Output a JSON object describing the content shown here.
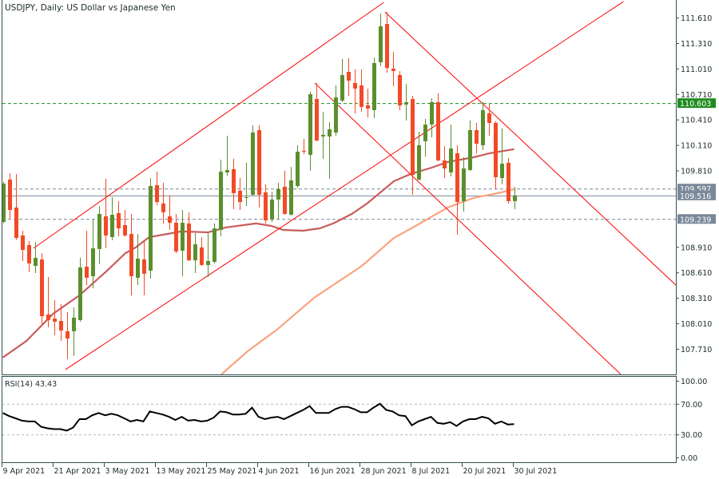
{
  "header": {
    "title": "USDJPY, Daily:  US Dollar vs Japanese Yen"
  },
  "colors": {
    "bull": "#5b8f2e",
    "bear": "#f24a26",
    "ma_fast": "#c95c5c",
    "ma_slow": "#f9a47e",
    "trendline": "#ff0000",
    "axis": "#2f4f4f",
    "marker_green": "#1f8c1f",
    "marker_gray": "#7a8899",
    "rsi": "#000000",
    "level": "#b8b8b8"
  },
  "chart_data": [
    {
      "type": "candlestick",
      "title": "USDJPY, Daily:  US Dollar vs Japanese Yen",
      "ylim": [
        107.409,
        111.817
      ],
      "xlim_bars": [
        -0.2,
        105.3
      ],
      "y_ticks": [
        "111.610",
        "111.310",
        "111.010",
        "110.710",
        "110.410",
        "110.110",
        "109.810",
        "108.910",
        "108.610",
        "108.310",
        "108.010",
        "107.710"
      ],
      "x_ticks": [
        {
          "bar": 0,
          "label": "9 Apr 2021"
        },
        {
          "bar": 8,
          "label": "21 Apr 2021"
        },
        {
          "bar": 16,
          "label": "3 May 2021"
        },
        {
          "bar": 24,
          "label": "13 May 2021"
        },
        {
          "bar": 32,
          "label": "25 May 2021"
        },
        {
          "bar": 40,
          "label": "4 Jun 2021"
        },
        {
          "bar": 48,
          "label": "16 Jun 2021"
        },
        {
          "bar": 56,
          "label": "28 Jun 2021"
        },
        {
          "bar": 64,
          "label": "8 Jul 2021"
        },
        {
          "bar": 72,
          "label": "20 Jul 2021"
        },
        {
          "bar": 80,
          "label": "30 Jul 2021"
        }
      ],
      "ohlc": [
        [
          109.204,
          109.674,
          109.186,
          109.655
        ],
        [
          109.703,
          109.778,
          109.242,
          109.345
        ],
        [
          109.374,
          109.768,
          108.99,
          109.016
        ],
        [
          109.045,
          109.101,
          108.744,
          108.875
        ],
        [
          108.932,
          108.979,
          108.612,
          108.716
        ],
        [
          108.687,
          108.969,
          108.603,
          108.781
        ],
        [
          108.763,
          108.838,
          108.001,
          108.095
        ],
        [
          108.114,
          108.556,
          107.964,
          108.049
        ],
        [
          108.067,
          108.283,
          107.87,
          108.03
        ],
        [
          108.039,
          108.236,
          107.804,
          107.926
        ],
        [
          107.917,
          108.142,
          107.588,
          107.832
        ],
        [
          107.917,
          108.199,
          107.626,
          108.077
        ],
        [
          108.049,
          108.781,
          108.03,
          108.669
        ],
        [
          108.678,
          109.101,
          108.462,
          108.547
        ],
        [
          108.565,
          109.233,
          108.424,
          108.894
        ],
        [
          108.885,
          109.392,
          108.706,
          109.298
        ],
        [
          109.27,
          109.712,
          108.894,
          109.045
        ],
        [
          109.026,
          109.496,
          108.988,
          109.289
        ],
        [
          109.308,
          109.449,
          109.035,
          109.129
        ],
        [
          109.167,
          109.345,
          109.03,
          109.045
        ],
        [
          109.063,
          109.298,
          108.34,
          108.565
        ],
        [
          108.547,
          109.063,
          108.462,
          108.772
        ],
        [
          108.763,
          108.979,
          108.34,
          108.594
        ],
        [
          108.631,
          109.721,
          108.537,
          109.627
        ],
        [
          109.637,
          109.796,
          109.402,
          109.439
        ],
        [
          109.421,
          109.665,
          109.186,
          109.317
        ],
        [
          109.27,
          109.515,
          109.11,
          109.195
        ],
        [
          109.195,
          109.298,
          108.838,
          108.857
        ],
        [
          108.866,
          109.345,
          108.565,
          109.195
        ],
        [
          109.186,
          109.317,
          108.744,
          108.753
        ],
        [
          108.753,
          109.073,
          108.603,
          108.941
        ],
        [
          108.904,
          109.026,
          108.687,
          108.697
        ],
        [
          108.697,
          109.073,
          108.556,
          108.744
        ],
        [
          108.734,
          109.186,
          108.716,
          109.129
        ],
        [
          109.11,
          109.937,
          109.035,
          109.796
        ],
        [
          109.787,
          110.219,
          109.749,
          109.815
        ],
        [
          109.825,
          109.947,
          109.355,
          109.543
        ],
        [
          109.571,
          109.721,
          109.345,
          109.439
        ],
        [
          109.487,
          109.9,
          109.392,
          109.496
        ],
        [
          109.524,
          110.342,
          109.515,
          110.257
        ],
        [
          110.285,
          110.342,
          109.374,
          109.524
        ],
        [
          109.552,
          109.646,
          109.186,
          109.223
        ],
        [
          109.233,
          109.561,
          109.204,
          109.468
        ],
        [
          109.468,
          109.665,
          109.233,
          109.59
        ],
        [
          109.618,
          109.806,
          109.29,
          109.298
        ],
        [
          109.289,
          109.853,
          109.28,
          109.693
        ],
        [
          109.627,
          110.107,
          109.608,
          110.031
        ],
        [
          110.041,
          110.182,
          110.003,
          110.031
        ],
        [
          109.994,
          110.736,
          109.806,
          110.708
        ],
        [
          110.652,
          110.84,
          110.154,
          110.163
        ],
        [
          110.21,
          110.501,
          109.947,
          110.229
        ],
        [
          110.21,
          110.379,
          109.712,
          110.295
        ],
        [
          110.257,
          110.811,
          110.219,
          110.67
        ],
        [
          110.633,
          111.122,
          110.614,
          110.934
        ],
        [
          110.971,
          111.131,
          110.689,
          110.868
        ],
        [
          110.84,
          111.0,
          110.482,
          110.774
        ],
        [
          110.811,
          111.0,
          110.501,
          110.558
        ],
        [
          110.577,
          110.774,
          110.436,
          110.539
        ],
        [
          110.52,
          111.14,
          110.426,
          111.075
        ],
        [
          111.084,
          111.657,
          111.037,
          111.507
        ],
        [
          111.535,
          111.676,
          110.962,
          111.018
        ],
        [
          111.009,
          111.206,
          110.802,
          110.981
        ],
        [
          110.934,
          110.981,
          110.52,
          110.576
        ],
        [
          110.586,
          110.83,
          110.398,
          110.614
        ],
        [
          110.652,
          110.689,
          109.524,
          109.759
        ],
        [
          109.703,
          110.266,
          109.693,
          110.107
        ],
        [
          110.154,
          110.417,
          109.975,
          110.351
        ],
        [
          110.351,
          110.661,
          110.201,
          110.614
        ],
        [
          110.614,
          110.717,
          109.92,
          109.928
        ],
        [
          109.928,
          110.097,
          109.721,
          109.834
        ],
        [
          109.787,
          110.351,
          109.74,
          110.069
        ],
        [
          110.013,
          110.107,
          109.054,
          109.439
        ],
        [
          109.449,
          109.966,
          109.327,
          109.834
        ],
        [
          109.815,
          110.398,
          109.806,
          110.285
        ],
        [
          110.285,
          110.37,
          110.013,
          110.125
        ],
        [
          110.107,
          110.614,
          110.05,
          110.52
        ],
        [
          110.482,
          110.595,
          110.219,
          110.37
        ],
        [
          110.37,
          110.389,
          109.59,
          109.731
        ],
        [
          109.721,
          110.304,
          109.646,
          109.89
        ],
        [
          109.9,
          109.956,
          109.421,
          109.449
        ],
        [
          109.449,
          109.618,
          109.355,
          109.516
        ]
      ],
      "moving_averages": [
        {
          "color_key": "ma_fast",
          "points": [
            [
              0,
              107.607
            ],
            [
              3.7,
              107.804
            ],
            [
              7.9,
              108.124
            ],
            [
              12,
              108.34
            ],
            [
              16.2,
              108.622
            ],
            [
              19.2,
              108.838
            ],
            [
              20.8,
              108.904
            ],
            [
              22.9,
              109.026
            ],
            [
              25.8,
              109.063
            ],
            [
              27.9,
              109.092
            ],
            [
              32.1,
              109.082
            ],
            [
              34.9,
              109.139
            ],
            [
              39.6,
              109.186
            ],
            [
              42,
              109.157
            ],
            [
              43.9,
              109.11
            ],
            [
              47,
              109.101
            ],
            [
              49.6,
              109.129
            ],
            [
              51.7,
              109.186
            ],
            [
              54.6,
              109.298
            ],
            [
              57,
              109.421
            ],
            [
              61.2,
              109.684
            ],
            [
              63.8,
              109.768
            ],
            [
              67.1,
              109.843
            ],
            [
              69.6,
              109.909
            ],
            [
              73.7,
              109.966
            ],
            [
              76.2,
              110.013
            ],
            [
              80,
              110.06
            ]
          ]
        },
        {
          "color_key": "ma_slow",
          "points": [
            [
              34.2,
              107.409
            ],
            [
              38.3,
              107.682
            ],
            [
              42.9,
              107.936
            ],
            [
              48.7,
              108.311
            ],
            [
              56.2,
              108.687
            ],
            [
              61.2,
              109.016
            ],
            [
              64.6,
              109.157
            ],
            [
              69.6,
              109.374
            ],
            [
              73.7,
              109.487
            ],
            [
              78,
              109.552
            ],
            [
              80,
              109.59
            ]
          ]
        }
      ],
      "trendlines": [
        {
          "from": [
            4.8,
            108.894
          ],
          "to": [
            59.6,
            111.789
          ]
        },
        {
          "from": [
            9.8,
            107.466
          ],
          "to": [
            97.1,
            111.798
          ]
        },
        {
          "from": [
            48.8,
            110.84
          ],
          "to": [
            96.7,
            107.409
          ]
        },
        {
          "from": [
            59.8,
            111.676
          ],
          "to": [
            105.3,
            108.462
          ]
        }
      ],
      "price_levels": [
        {
          "value": 110.603,
          "label": "110.603",
          "style": "dashed",
          "color_key": "marker_green"
        },
        {
          "value": 109.597,
          "label": "109.597",
          "style": "dashed",
          "color_key": "marker_gray"
        },
        {
          "value": 109.516,
          "label": "109.516",
          "style": "solid",
          "color_key": "marker_gray"
        },
        {
          "value": 109.239,
          "label": "109.239",
          "style": "dashed",
          "color_key": "marker_gray"
        }
      ]
    },
    {
      "type": "line",
      "title": "RSI(14) 43.43",
      "ylim": [
        0,
        100
      ],
      "y_ticks": [
        "100.00",
        "70.00",
        "30.00",
        "0.00"
      ],
      "levels": [
        70,
        30
      ],
      "values": [
        58,
        54,
        51,
        48,
        47,
        47,
        40,
        38,
        37,
        37,
        35,
        39,
        50,
        50,
        55,
        58,
        55,
        57,
        55,
        51,
        47,
        49,
        47,
        60,
        58,
        56,
        53,
        49,
        53,
        48,
        49,
        47,
        48,
        52,
        60,
        59,
        56,
        56,
        57,
        65,
        53,
        50,
        52,
        53,
        50,
        54,
        58,
        62,
        67,
        58,
        58,
        58,
        63,
        66,
        66,
        63,
        59,
        59,
        65,
        70,
        62,
        60,
        55,
        54,
        42,
        47,
        50,
        53,
        45,
        44,
        46,
        41,
        47,
        50,
        50,
        53,
        51,
        44,
        47,
        43,
        43.43
      ]
    }
  ]
}
